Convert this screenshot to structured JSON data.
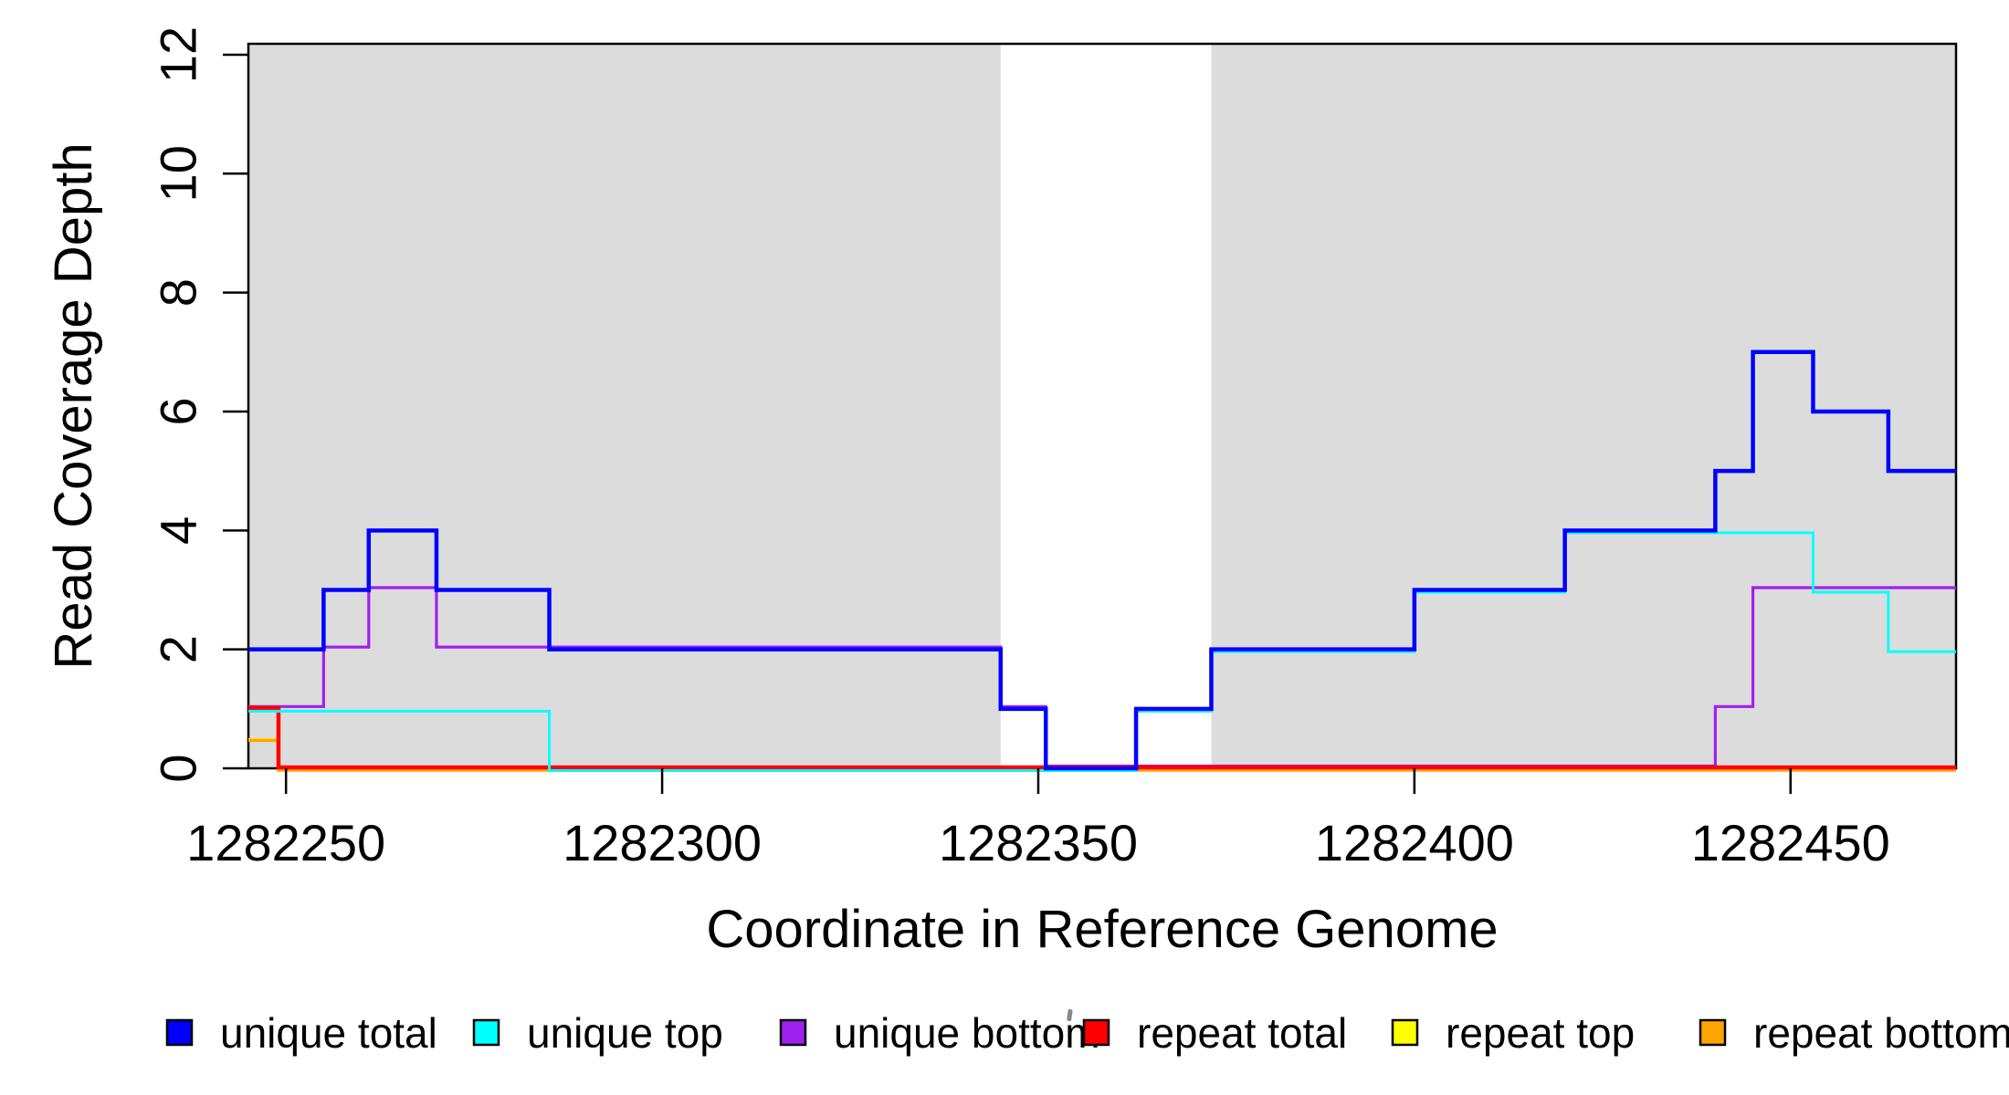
{
  "chart_data": {
    "type": "line",
    "subtype": "step-coverage-plot",
    "title": "",
    "xlabel": "Coordinate in Reference Genome",
    "ylabel": "Read Coverage Depth",
    "xlim": [
      1282245,
      1282472
    ],
    "ylim": [
      0,
      12
    ],
    "x_ticks": [
      1282250,
      1282300,
      1282350,
      1282400,
      1282450
    ],
    "y_ticks": [
      0,
      2,
      4,
      6,
      8,
      10,
      12
    ],
    "grid": false,
    "legend_position": "bottom",
    "shading": {
      "color": "#DCDCDC",
      "regions": [
        [
          1282245,
          1282345
        ],
        [
          1282373,
          1282472
        ]
      ],
      "white_gap": [
        [
          1282345,
          1282373
        ]
      ]
    },
    "x_end": 1282472,
    "series": [
      {
        "name": "unique total",
        "color": "#0000FF",
        "points": [
          [
            1282245,
            2
          ],
          [
            1282255,
            3
          ],
          [
            1282261,
            4
          ],
          [
            1282270,
            3
          ],
          [
            1282285,
            2
          ],
          [
            1282345,
            1
          ],
          [
            1282351,
            0
          ],
          [
            1282363,
            1
          ],
          [
            1282373,
            2
          ],
          [
            1282400,
            3
          ],
          [
            1282420,
            4
          ],
          [
            1282440,
            5
          ],
          [
            1282445,
            7
          ],
          [
            1282453,
            6
          ],
          [
            1282463,
            5
          ]
        ]
      },
      {
        "name": "unique top",
        "color": "#00FFFF",
        "points": [
          [
            1282245,
            1
          ],
          [
            1282285,
            0
          ],
          [
            1282363,
            1
          ],
          [
            1282373,
            2
          ],
          [
            1282400,
            3
          ],
          [
            1282420,
            4
          ],
          [
            1282453,
            3
          ],
          [
            1282463,
            2
          ]
        ]
      },
      {
        "name": "unique bottom",
        "color": "#A020F0",
        "points": [
          [
            1282245,
            1
          ],
          [
            1282255,
            2
          ],
          [
            1282261,
            3
          ],
          [
            1282270,
            2
          ],
          [
            1282345,
            1
          ],
          [
            1282351,
            0
          ],
          [
            1282440,
            1
          ],
          [
            1282445,
            3
          ]
        ]
      },
      {
        "name": "repeat total",
        "color": "#FF0000",
        "points": [
          [
            1282245,
            1
          ],
          [
            1282249,
            0
          ]
        ]
      },
      {
        "name": "repeat top",
        "color": "#FFFF00",
        "points": [
          [
            1282245,
            0.5
          ],
          [
            1282249,
            0
          ]
        ]
      },
      {
        "name": "repeat bottom",
        "color": "#FFA500",
        "points": [
          [
            1282245,
            0.5
          ],
          [
            1282249,
            0
          ]
        ]
      }
    ]
  },
  "legend": {
    "items": [
      {
        "label": "unique total",
        "color": "#0000FF"
      },
      {
        "label": "unique top",
        "color": "#00FFFF"
      },
      {
        "label": "unique bottom",
        "color": "#A020F0"
      },
      {
        "label": "repeat total",
        "color": "#FF0000"
      },
      {
        "label": "repeat top",
        "color": "#FFFF00"
      },
      {
        "label": "repeat bottom",
        "color": "#FFA500"
      }
    ]
  }
}
